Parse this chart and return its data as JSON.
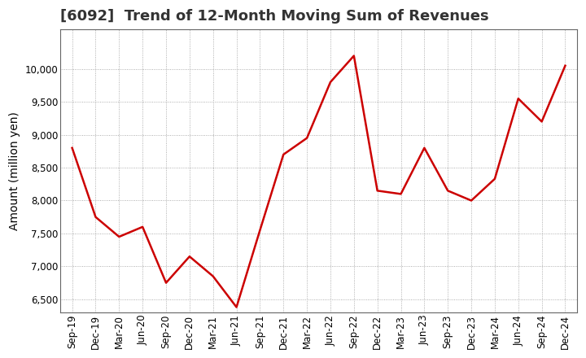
{
  "title": "[6092]  Trend of 12-Month Moving Sum of Revenues",
  "ylabel": "Amount (million yen)",
  "line_color": "#cc0000",
  "background_color": "#ffffff",
  "plot_bg_color": "#ffffff",
  "grid_color": "#999999",
  "title_fontsize": 13,
  "label_fontsize": 10,
  "tick_fontsize": 8.5,
  "xlabels": [
    "Sep-19",
    "Dec-19",
    "Mar-20",
    "Jun-20",
    "Sep-20",
    "Dec-20",
    "Mar-21",
    "Jun-21",
    "Sep-21",
    "Dec-21",
    "Mar-22",
    "Jun-22",
    "Sep-22",
    "Dec-22",
    "Mar-23",
    "Jun-23",
    "Sep-23",
    "Dec-23",
    "Mar-24",
    "Jun-24",
    "Sep-24",
    "Dec-24"
  ],
  "values": [
    8800,
    7750,
    7450,
    7600,
    6750,
    7150,
    6850,
    6380,
    7550,
    8700,
    8950,
    9800,
    10200,
    8150,
    8100,
    8800,
    8150,
    8000,
    8330,
    9550,
    9200,
    10050
  ],
  "ylim": [
    6300,
    10600
  ],
  "yticks": [
    6500,
    7000,
    7500,
    8000,
    8500,
    9000,
    9500,
    10000
  ],
  "title_color": "#333333"
}
